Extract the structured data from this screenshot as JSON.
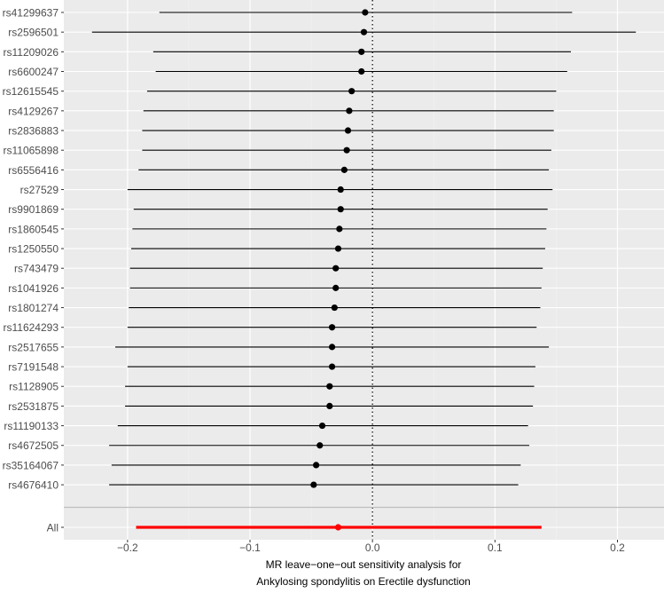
{
  "chart_data": {
    "type": "forest",
    "title": "",
    "xlabel_line1": "MR leave−one−out sensitivity analysis for",
    "xlabel_line2": "Ankylosing spondylitis  on  Erectile dysfunction",
    "ylabel": "",
    "xlim": [
      -0.252,
      0.238
    ],
    "x_ticks": [
      {
        "value": -0.2,
        "label": "−0.2"
      },
      {
        "value": -0.1,
        "label": "−0.1"
      },
      {
        "value": 0.0,
        "label": "0.0"
      },
      {
        "value": 0.1,
        "label": "0.1"
      },
      {
        "value": 0.2,
        "label": "0.2"
      }
    ],
    "reference_line": 0,
    "grid": true,
    "rows": [
      {
        "label": "rs41299637",
        "est": -0.006,
        "lo": -0.174,
        "hi": 0.163
      },
      {
        "label": "rs2596501",
        "est": -0.007,
        "lo": -0.229,
        "hi": 0.215
      },
      {
        "label": "rs11209026",
        "est": -0.009,
        "lo": -0.179,
        "hi": 0.162
      },
      {
        "label": "rs6600247",
        "est": -0.009,
        "lo": -0.177,
        "hi": 0.159
      },
      {
        "label": "rs12615545",
        "est": -0.017,
        "lo": -0.184,
        "hi": 0.15
      },
      {
        "label": "rs4129267",
        "est": -0.019,
        "lo": -0.187,
        "hi": 0.148
      },
      {
        "label": "rs2836883",
        "est": -0.02,
        "lo": -0.188,
        "hi": 0.148
      },
      {
        "label": "rs11065898",
        "est": -0.021,
        "lo": -0.188,
        "hi": 0.146
      },
      {
        "label": "rs6556416",
        "est": -0.023,
        "lo": -0.191,
        "hi": 0.144
      },
      {
        "label": "rs27529",
        "est": -0.026,
        "lo": -0.2,
        "hi": 0.147
      },
      {
        "label": "rs9901869",
        "est": -0.026,
        "lo": -0.195,
        "hi": 0.143
      },
      {
        "label": "rs1860545",
        "est": -0.027,
        "lo": -0.196,
        "hi": 0.142
      },
      {
        "label": "rs1250550",
        "est": -0.028,
        "lo": -0.197,
        "hi": 0.141
      },
      {
        "label": "rs743479",
        "est": -0.03,
        "lo": -0.198,
        "hi": 0.139
      },
      {
        "label": "rs1041926",
        "est": -0.03,
        "lo": -0.198,
        "hi": 0.138
      },
      {
        "label": "rs1801274",
        "est": -0.031,
        "lo": -0.199,
        "hi": 0.137
      },
      {
        "label": "rs11624293",
        "est": -0.033,
        "lo": -0.2,
        "hi": 0.134
      },
      {
        "label": "rs2517655",
        "est": -0.033,
        "lo": -0.21,
        "hi": 0.144
      },
      {
        "label": "rs7191548",
        "est": -0.033,
        "lo": -0.2,
        "hi": 0.133
      },
      {
        "label": "rs1128905",
        "est": -0.035,
        "lo": -0.202,
        "hi": 0.132
      },
      {
        "label": "rs2531875",
        "est": -0.035,
        "lo": -0.202,
        "hi": 0.131
      },
      {
        "label": "rs11190133",
        "est": -0.041,
        "lo": -0.208,
        "hi": 0.127
      },
      {
        "label": "rs4672505",
        "est": -0.043,
        "lo": -0.215,
        "hi": 0.128
      },
      {
        "label": "rs35164067",
        "est": -0.046,
        "lo": -0.213,
        "hi": 0.121
      },
      {
        "label": "rs4676410",
        "est": -0.048,
        "lo": -0.215,
        "hi": 0.119
      }
    ],
    "overall": {
      "label": "All",
      "est": -0.028,
      "lo": -0.193,
      "hi": 0.138
    },
    "colors": {
      "panel_background": "#ebebeb",
      "grid_major": "#ffffff",
      "grid_minor": "#f2f2f2",
      "point": "#000000",
      "interval": "#000000",
      "overall": "#ff0000",
      "separator": "#bebebe",
      "reference": "#000000",
      "tick_label": "#4d4d4d",
      "axis_title": "#000000"
    }
  }
}
